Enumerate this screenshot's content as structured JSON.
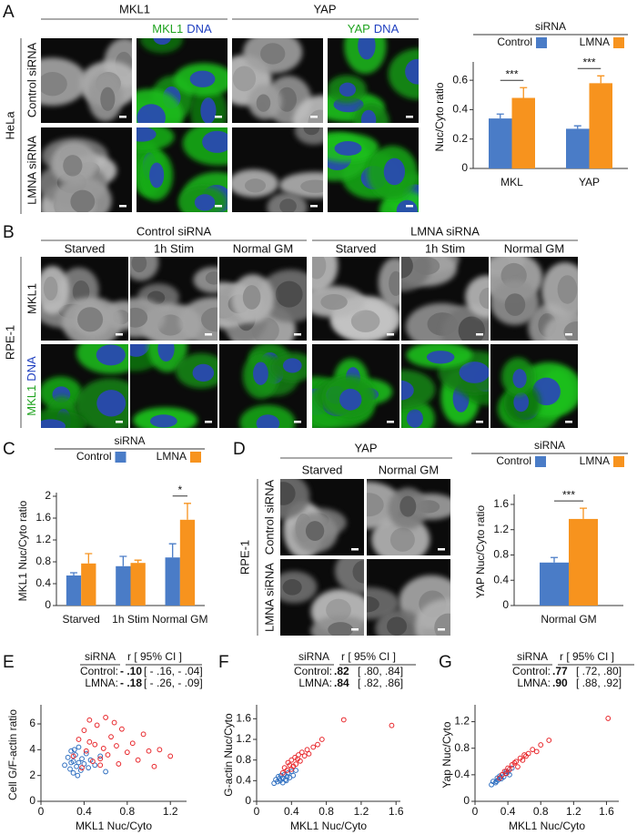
{
  "figure": {
    "panel_letters": [
      "A",
      "B",
      "C",
      "D",
      "E",
      "F",
      "G"
    ],
    "a": {
      "columns": [
        "MKL1",
        "YAP"
      ],
      "merge_mkl1": [
        "MKL1",
        "DNA"
      ],
      "merge_yap": [
        "YAP",
        "DNA"
      ],
      "rows": [
        "Control siRNA",
        "LMNA siRNA"
      ],
      "cell_line": "HeLa"
    },
    "b": {
      "groups": [
        "Control siRNA",
        "LMNA siRNA"
      ],
      "conditions": [
        "Starved",
        "1h Stim",
        "Normal GM"
      ],
      "row": "MKL1",
      "merge": [
        "MKL1",
        "DNA"
      ],
      "cell_line": "RPE-1"
    },
    "d": {
      "stain": "YAP",
      "conditions": [
        "Starved",
        "Normal GM"
      ],
      "rows": [
        "Control siRNA",
        "LMNA siRNA"
      ],
      "cell_line": "RPE-1"
    }
  },
  "chart_data": [
    {
      "type": "bar",
      "legend_title": "siRNA",
      "y_label": "Nuc/Cyto ratio",
      "categories": [
        "MKL",
        "YAP"
      ],
      "series": [
        {
          "name": "Control",
          "color": "#4a7cc7",
          "values": [
            0.34,
            0.27
          ],
          "errors": [
            0.03,
            0.02
          ]
        },
        {
          "name": "LMNA",
          "color": "#f7931e",
          "values": [
            0.48,
            0.58
          ],
          "errors": [
            0.07,
            0.05
          ]
        }
      ],
      "significance": [
        "***",
        "***"
      ],
      "ylim": [
        0,
        0.7
      ],
      "yticks": [
        0,
        0.2,
        0.4,
        0.6
      ]
    },
    {
      "type": "bar",
      "legend_title": "siRNA",
      "y_label": "MKL1 Nuc/Cyto ratio",
      "categories": [
        "Starved",
        "1h Stim",
        "Normal GM"
      ],
      "series": [
        {
          "name": "Control",
          "color": "#4a7cc7",
          "values": [
            0.55,
            0.72,
            0.88
          ],
          "errors": [
            0.05,
            0.18,
            0.25
          ]
        },
        {
          "name": "LMNA",
          "color": "#f7931e",
          "values": [
            0.77,
            0.78,
            1.57
          ],
          "errors": [
            0.18,
            0.05,
            0.3
          ]
        }
      ],
      "significance": [
        null,
        null,
        "*"
      ],
      "ylim": [
        0,
        2
      ],
      "yticks": [
        0,
        0.4,
        0.8,
        1.2,
        1.6,
        2
      ]
    },
    {
      "type": "bar",
      "legend_title": "siRNA",
      "y_label": "YAP Nuc/Cyto ratio",
      "categories": [
        "Normal GM"
      ],
      "series": [
        {
          "name": "Control",
          "color": "#4a7cc7",
          "values": [
            0.68
          ],
          "errors": [
            0.08
          ]
        },
        {
          "name": "LMNA",
          "color": "#f7931e",
          "values": [
            1.37
          ],
          "errors": [
            0.17
          ]
        }
      ],
      "significance": [
        "***"
      ],
      "ylim": [
        0,
        1.7
      ],
      "yticks": [
        0,
        0.4,
        0.8,
        1.2,
        1.6
      ]
    },
    {
      "type": "scatter",
      "legend_title": "siRNA",
      "stats_header": "r [ 95% CI ]",
      "x_label": "MKL1 Nuc/Cyto",
      "y_label": "Cell G/F-actin ratio",
      "xlim": [
        0,
        1.35
      ],
      "xticks": [
        0,
        0.4,
        0.8,
        1.2
      ],
      "ylim": [
        0,
        7.2
      ],
      "yticks": [
        0,
        2,
        4,
        6
      ],
      "series": [
        {
          "name": "Control:",
          "color": "#2f6fc0",
          "r": "- .10",
          "ci": "[ - .16, - .04]",
          "x": [
            0.22,
            0.25,
            0.27,
            0.28,
            0.3,
            0.3,
            0.32,
            0.33,
            0.35,
            0.35,
            0.37,
            0.38,
            0.4,
            0.42,
            0.44,
            0.46,
            0.5,
            0.55,
            0.6,
            0.28,
            0.31,
            0.34
          ],
          "y": [
            2.8,
            3.4,
            2.5,
            3.9,
            3.1,
            2.2,
            3.6,
            2.7,
            3.0,
            4.2,
            2.4,
            3.3,
            2.9,
            3.7,
            2.6,
            3.2,
            2.8,
            3.5,
            2.3,
            3.0,
            4.0,
            2.0
          ]
        },
        {
          "name": "LMNA:",
          "color": "#e8262b",
          "r": "- .18",
          "ci": "[ - .26, - .09]",
          "x": [
            0.3,
            0.35,
            0.38,
            0.4,
            0.42,
            0.45,
            0.48,
            0.5,
            0.52,
            0.55,
            0.58,
            0.6,
            0.62,
            0.65,
            0.7,
            0.72,
            0.75,
            0.8,
            0.85,
            0.9,
            0.95,
            1.0,
            1.05,
            1.1,
            1.2,
            0.45,
            0.55,
            0.68
          ],
          "y": [
            3.5,
            4.8,
            2.6,
            5.5,
            3.9,
            6.3,
            3.1,
            4.4,
            5.9,
            2.8,
            4.1,
            6.5,
            3.6,
            5.0,
            4.3,
            2.9,
            5.6,
            3.8,
            4.5,
            3.2,
            5.2,
            3.9,
            2.7,
            4.0,
            3.5,
            4.6,
            3.3,
            6.1
          ]
        }
      ]
    },
    {
      "type": "scatter",
      "legend_title": "siRNA",
      "stats_header": "r [ 95% CI ]",
      "x_label": "MKL1 Nuc/Cyto",
      "y_label": "G-actin Nuc/Cyto",
      "xlim": [
        0,
        1.65
      ],
      "xticks": [
        0,
        0.4,
        0.8,
        1.2,
        1.6
      ],
      "ylim": [
        0,
        1.8
      ],
      "yticks": [
        0,
        0.4,
        0.8,
        1.2,
        1.6
      ],
      "series": [
        {
          "name": "Control:",
          "color": "#2f6fc0",
          "r": ".82",
          "ci": "[ .80, .84]",
          "x": [
            0.2,
            0.22,
            0.24,
            0.25,
            0.27,
            0.28,
            0.3,
            0.3,
            0.32,
            0.33,
            0.35,
            0.36,
            0.38,
            0.4,
            0.42,
            0.45,
            0.26,
            0.34
          ],
          "y": [
            0.35,
            0.42,
            0.38,
            0.48,
            0.4,
            0.5,
            0.36,
            0.45,
            0.52,
            0.42,
            0.48,
            0.55,
            0.46,
            0.58,
            0.5,
            0.6,
            0.44,
            0.4
          ]
        },
        {
          "name": "LMNA:",
          "color": "#e8262b",
          "r": ".84",
          "ci": "[ .82, .86]",
          "x": [
            0.3,
            0.32,
            0.35,
            0.36,
            0.38,
            0.4,
            0.42,
            0.44,
            0.45,
            0.48,
            0.5,
            0.52,
            0.55,
            0.58,
            0.6,
            0.65,
            0.7,
            0.75,
            1.0,
            1.55,
            0.4,
            0.47
          ],
          "y": [
            0.55,
            0.65,
            0.6,
            0.75,
            0.7,
            0.8,
            0.68,
            0.85,
            0.72,
            0.9,
            0.78,
            0.95,
            0.88,
            1.0,
            0.92,
            1.05,
            1.1,
            1.2,
            1.58,
            1.47,
            0.62,
            0.82
          ]
        }
      ]
    },
    {
      "type": "scatter",
      "legend_title": "siRNA",
      "stats_header": "r [ 95% CI ]",
      "x_label": "MKL1 Nuc/Cyto",
      "y_label": "Yap Nuc/Cyto",
      "xlim": [
        0,
        1.75
      ],
      "xticks": [
        0,
        0.4,
        0.8,
        1.2,
        1.6
      ],
      "ylim": [
        0,
        1.4
      ],
      "yticks": [
        0,
        0.4,
        0.8,
        1.2
      ],
      "series": [
        {
          "name": "Control:",
          "color": "#2f6fc0",
          "r": ".77",
          "ci": "[ .72, .80]",
          "x": [
            0.2,
            0.22,
            0.25,
            0.27,
            0.28,
            0.3,
            0.32,
            0.33,
            0.35,
            0.37,
            0.4,
            0.42,
            0.45,
            0.26,
            0.31,
            0.38
          ],
          "y": [
            0.25,
            0.3,
            0.28,
            0.35,
            0.32,
            0.38,
            0.34,
            0.4,
            0.37,
            0.42,
            0.44,
            0.4,
            0.5,
            0.3,
            0.36,
            0.45
          ]
        },
        {
          "name": "LMNA:",
          "color": "#e8262b",
          "r": ".90",
          "ci": "[ .88, .92]",
          "x": [
            0.3,
            0.33,
            0.36,
            0.4,
            0.42,
            0.45,
            0.48,
            0.5,
            0.55,
            0.58,
            0.6,
            0.65,
            0.7,
            0.75,
            0.8,
            0.9,
            1.62,
            0.38,
            0.52,
            0.62
          ],
          "y": [
            0.35,
            0.4,
            0.45,
            0.5,
            0.48,
            0.55,
            0.58,
            0.6,
            0.65,
            0.62,
            0.7,
            0.72,
            0.78,
            0.75,
            0.85,
            0.92,
            1.25,
            0.42,
            0.52,
            0.68
          ]
        }
      ]
    }
  ]
}
